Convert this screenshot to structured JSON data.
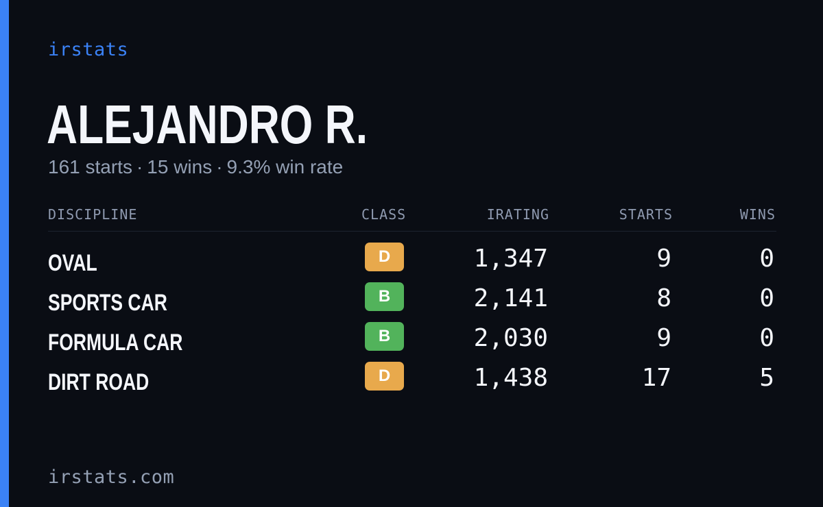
{
  "brand": "irstats",
  "driver": {
    "name": "ALEJANDRO R.",
    "starts": "161 starts",
    "wins": "15 wins",
    "win_rate": "9.3% win rate",
    "separator": "·"
  },
  "table": {
    "headers": {
      "discipline": "DISCIPLINE",
      "class": "CLASS",
      "irating": "IRATING",
      "starts": "STARTS",
      "wins": "WINS"
    },
    "rows": [
      {
        "discipline": "OVAL",
        "class": "D",
        "irating": "1,347",
        "starts": "9",
        "wins": "0"
      },
      {
        "discipline": "SPORTS CAR",
        "class": "B",
        "irating": "2,141",
        "starts": "8",
        "wins": "0"
      },
      {
        "discipline": "FORMULA CAR",
        "class": "B",
        "irating": "2,030",
        "starts": "9",
        "wins": "0"
      },
      {
        "discipline": "DIRT ROAD",
        "class": "D",
        "irating": "1,438",
        "starts": "17",
        "wins": "5"
      }
    ]
  },
  "class_colors": {
    "D": "#e8a94c",
    "B": "#52b35b"
  },
  "accent_color": "#3b82f6",
  "footer": "irstats.com"
}
